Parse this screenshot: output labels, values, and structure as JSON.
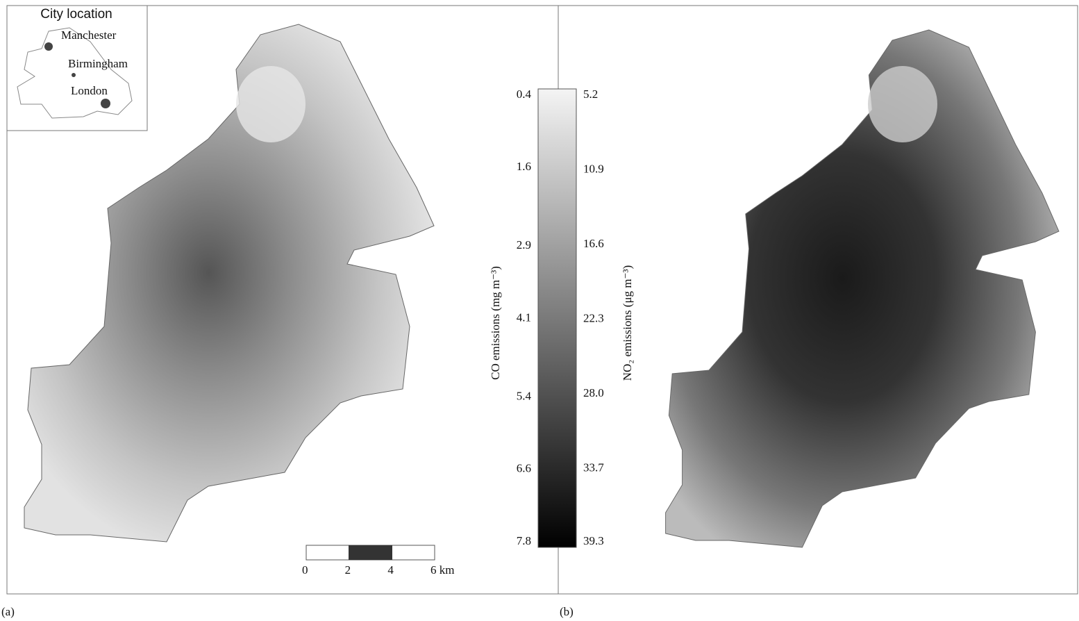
{
  "inset": {
    "title": "City location",
    "cities": [
      "Manchester",
      "Birmingham",
      "London"
    ]
  },
  "colorbar": {
    "left_title": "CO emissions (mg m⁻³)",
    "left_ticks": [
      0.4,
      1.6,
      2.9,
      4.1,
      5.4,
      6.6,
      7.8
    ],
    "right_title": "NO₂ emissions (μg m⁻³)",
    "right_ticks": [
      5.2,
      10.9,
      16.6,
      22.3,
      {
        "value": 28,
        "label": "28.0"
      },
      33.7,
      39.3
    ]
  },
  "scale_bar": {
    "ticks": [
      0,
      2,
      4,
      {
        "value": 6,
        "label": "6 km"
      }
    ]
  },
  "panels": [
    "(a)",
    "(b)"
  ]
}
